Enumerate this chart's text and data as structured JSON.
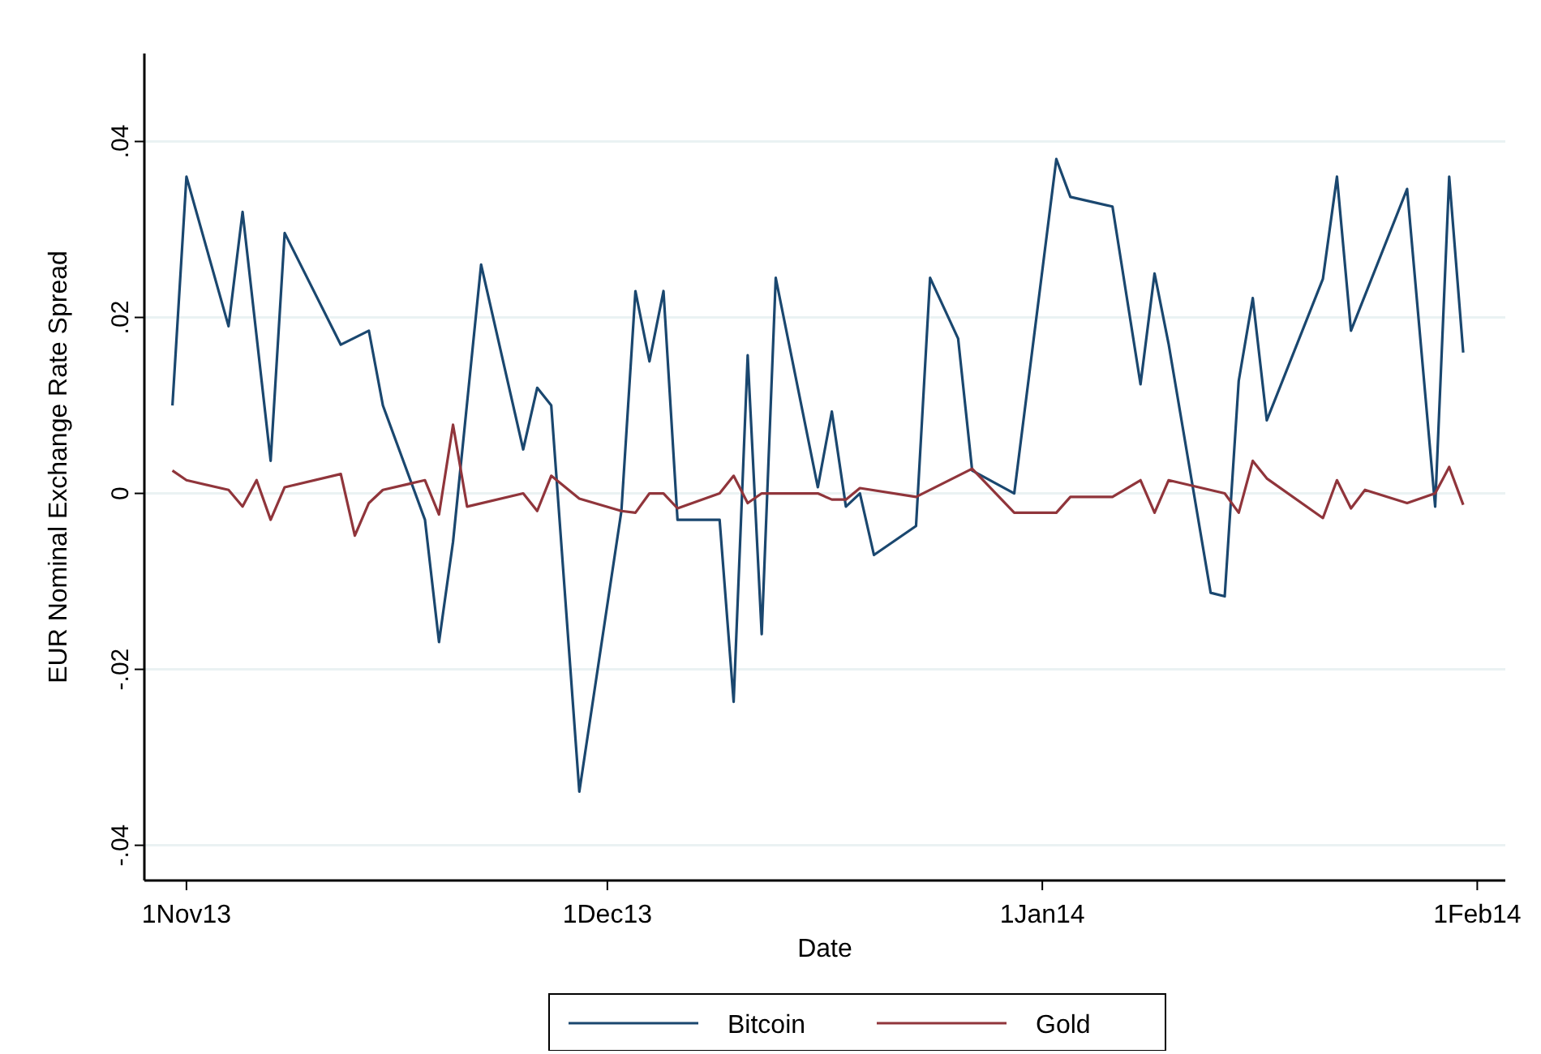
{
  "chart_data": {
    "type": "line",
    "xlabel": "Date",
    "ylabel": "EUR Nominal Exchange Rate Spread",
    "xlim": [
      "2013-10-29",
      "2014-02-03"
    ],
    "xticks": [
      {
        "value": "2013-11-01",
        "label": "1Nov13"
      },
      {
        "value": "2013-12-01",
        "label": "1Dec13"
      },
      {
        "value": "2014-01-01",
        "label": "1Jan14"
      },
      {
        "value": "2014-02-01",
        "label": "1Feb14"
      }
    ],
    "ylim": [
      -0.044,
      0.05
    ],
    "yticks": [
      {
        "value": -0.04,
        "label": "-.04"
      },
      {
        "value": -0.02,
        "label": "-.02"
      },
      {
        "value": 0,
        "label": "0"
      },
      {
        "value": 0.02,
        "label": ".02"
      },
      {
        "value": 0.04,
        "label": ".04"
      }
    ],
    "grid": "y",
    "legend": "bottom",
    "marker": "none",
    "line_style": "solid",
    "series": [
      {
        "name": "Bitcoin",
        "color": "#1a476f",
        "x": [
          "2013-10-31",
          "2013-11-01",
          "2013-11-04",
          "2013-11-05",
          "2013-11-07",
          "2013-11-08",
          "2013-11-12",
          "2013-11-14",
          "2013-11-15",
          "2013-11-18",
          "2013-11-19",
          "2013-11-20",
          "2013-11-22",
          "2013-11-25",
          "2013-11-26",
          "2013-11-27",
          "2013-11-29",
          "2013-12-02",
          "2013-12-03",
          "2013-12-04",
          "2013-12-05",
          "2013-12-06",
          "2013-12-09",
          "2013-12-10",
          "2013-12-11",
          "2013-12-12",
          "2013-12-13",
          "2013-12-16",
          "2013-12-17",
          "2013-12-18",
          "2013-12-19",
          "2013-12-20",
          "2013-12-23",
          "2013-12-24",
          "2013-12-26",
          "2013-12-27",
          "2013-12-30",
          "2014-01-02",
          "2014-01-03",
          "2014-01-06",
          "2014-01-08",
          "2014-01-09",
          "2014-01-10",
          "2014-01-13",
          "2014-01-14",
          "2014-01-15",
          "2014-01-16",
          "2014-01-17",
          "2014-01-21",
          "2014-01-22",
          "2014-01-23",
          "2014-01-27",
          "2014-01-29",
          "2014-01-30",
          "2014-01-31"
        ],
        "values": [
          0.01,
          0.036,
          0.019,
          0.032,
          0.0037,
          0.0296,
          0.0169,
          0.0185,
          0.01,
          -0.003,
          -0.0169,
          -0.0055,
          0.026,
          0.005,
          0.012,
          0.01,
          -0.0339,
          -0.002,
          0.023,
          0.015,
          0.023,
          -0.003,
          -0.003,
          -0.0237,
          0.0157,
          -0.016,
          0.0245,
          0.0007,
          0.0093,
          -0.0015,
          0.0,
          -0.007,
          -0.0037,
          0.0245,
          0.0176,
          0.0026,
          0.0,
          0.038,
          0.0337,
          0.0326,
          0.0124,
          0.025,
          0.017,
          -0.0113,
          -0.0117,
          0.0128,
          0.0222,
          0.0083,
          0.0244,
          0.036,
          0.0185,
          0.0346,
          -0.0015,
          0.036,
          0.016
        ]
      },
      {
        "name": "Gold",
        "color": "#90353b",
        "x": [
          "2013-10-31",
          "2013-11-01",
          "2013-11-04",
          "2013-11-05",
          "2013-11-06",
          "2013-11-07",
          "2013-11-08",
          "2013-11-12",
          "2013-11-13",
          "2013-11-14",
          "2013-11-15",
          "2013-11-18",
          "2013-11-19",
          "2013-11-20",
          "2013-11-21",
          "2013-11-25",
          "2013-11-26",
          "2013-11-27",
          "2013-11-29",
          "2013-12-02",
          "2013-12-03",
          "2013-12-04",
          "2013-12-05",
          "2013-12-06",
          "2013-12-09",
          "2013-12-10",
          "2013-12-11",
          "2013-12-12",
          "2013-12-16",
          "2013-12-17",
          "2013-12-18",
          "2013-12-19",
          "2013-12-23",
          "2013-12-27",
          "2013-12-30",
          "2014-01-02",
          "2014-01-03",
          "2014-01-06",
          "2014-01-08",
          "2014-01-09",
          "2014-01-10",
          "2014-01-14",
          "2014-01-15",
          "2014-01-16",
          "2014-01-17",
          "2014-01-21",
          "2014-01-22",
          "2014-01-23",
          "2014-01-24",
          "2014-01-27",
          "2014-01-29",
          "2014-01-30",
          "2014-01-31"
        ],
        "values": [
          0.0026,
          0.0015,
          0.0004,
          -0.0015,
          0.0015,
          -0.003,
          0.0007,
          0.0022,
          -0.0048,
          -0.0011,
          0.0004,
          0.0015,
          -0.0024,
          0.0078,
          -0.0015,
          0.0,
          -0.002,
          0.002,
          -0.0006,
          -0.002,
          -0.0022,
          0.0,
          0.0,
          -0.0017,
          0.0,
          0.002,
          -0.0011,
          0.0,
          0.0,
          -0.0007,
          -0.0007,
          0.0006,
          -0.0004,
          0.0028,
          -0.0022,
          -0.0022,
          -0.0004,
          -0.0004,
          0.0015,
          -0.0022,
          0.0015,
          0.0,
          -0.0022,
          0.0037,
          0.0017,
          -0.0028,
          0.0015,
          -0.0017,
          0.0004,
          -0.0011,
          0.0,
          0.003,
          -0.0013
        ]
      }
    ]
  }
}
